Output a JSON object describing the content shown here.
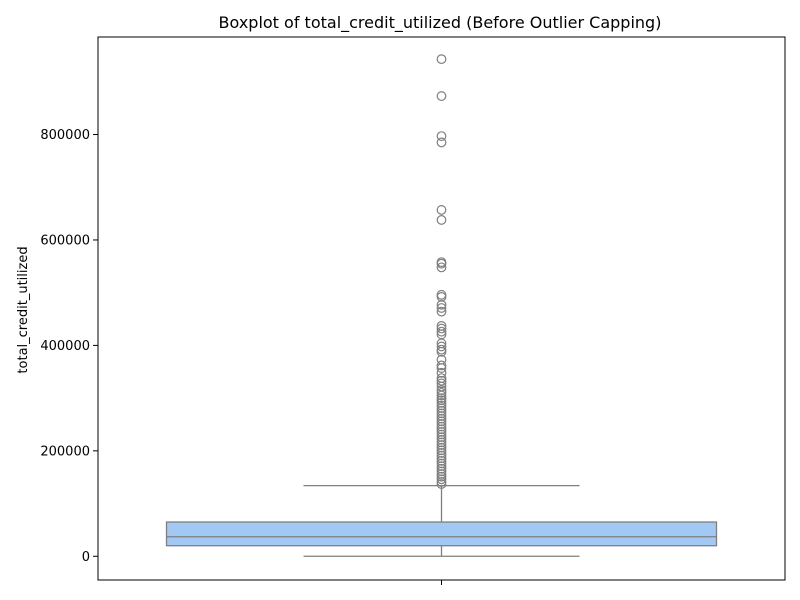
{
  "chart_data": {
    "type": "box",
    "title": "Boxplot of total_credit_utilized (Before Outlier Capping)",
    "xlabel": "",
    "ylabel": "total_credit_utilized",
    "ylim": [
      -45000,
      985000
    ],
    "yticks": [
      0,
      200000,
      400000,
      600000,
      800000
    ],
    "ytick_labels": [
      "0",
      "200000",
      "400000",
      "600000",
      "800000"
    ],
    "grid": false,
    "box": {
      "whisker_low": 0,
      "q1": 20000,
      "median": 37000,
      "q3": 65000,
      "whisker_high": 134000,
      "outliers": [
        943000,
        873000,
        797000,
        785000,
        657000,
        638000,
        558000,
        555000,
        548000,
        496000,
        492000,
        477000,
        471000,
        464000,
        437000,
        432000,
        426000,
        421000,
        404000,
        398000,
        392000,
        388000,
        373000,
        362000,
        357000,
        348000,
        338000,
        333000,
        328000,
        322000,
        315000,
        310000,
        305000,
        300000,
        296000,
        291000,
        286000,
        281000,
        276000,
        271000,
        266000,
        261000,
        256000,
        251000,
        246000,
        241000,
        236000,
        231000,
        226000,
        221000,
        216000,
        211000,
        206000,
        201000,
        196000,
        191000,
        186000,
        181000,
        176000,
        171000,
        166000,
        161000,
        156000,
        151000,
        146000,
        141000,
        137000
      ]
    },
    "colors": {
      "box_fill": "#a1c9f4",
      "box_edge": "#7f7f7f",
      "median": "#7f7f7f",
      "whisker": "#7f7f7f",
      "outlier": "#7f7f7f"
    }
  }
}
